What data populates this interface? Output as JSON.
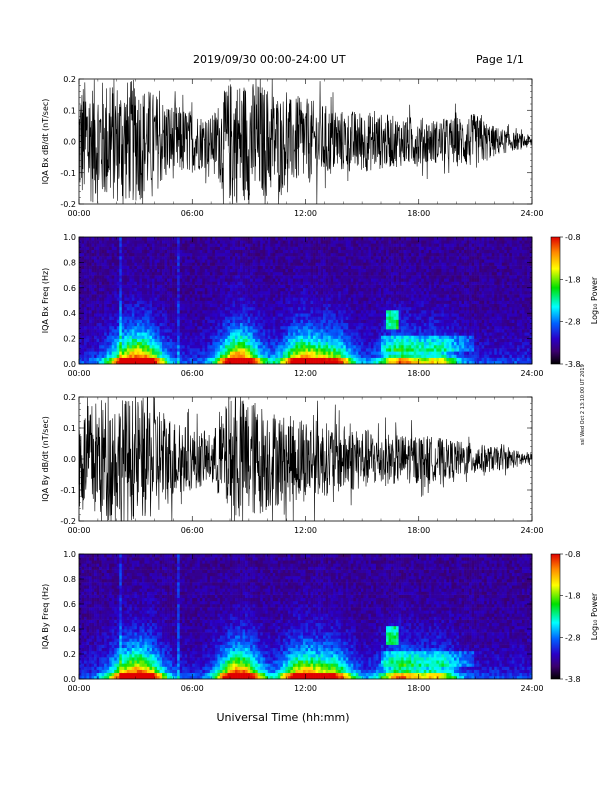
{
  "header": {
    "title": "2019/09/30  00:00-24:00 UT",
    "page": "Page 1/1"
  },
  "footer": {
    "xlabel": "Universal Time (hh:mm)",
    "side_note": "ssl Wed Oct 2 13:10:00 UT 2019"
  },
  "colorbar": {
    "label": "Log₁₀ Power",
    "ticks": [
      -0.8,
      -1.8,
      -2.8,
      -3.8
    ],
    "tick_labels": [
      "-0.8",
      "-1.8",
      "-2.8",
      "-3.8"
    ],
    "colors": [
      "#e00000",
      "#ff8800",
      "#ffff00",
      "#00e000",
      "#00ffff",
      "#0060ff",
      "#2a00c8",
      "#3a006e",
      "#000000"
    ]
  },
  "chart_data": [
    {
      "type": "line",
      "panel": "iqa-bx-timeseries",
      "ylabel": "IQA Bx dB/dt (nT/sec)",
      "ylim": [
        -0.2,
        0.2
      ],
      "yticks": [
        -0.2,
        -0.1,
        0.0,
        0.1,
        0.2
      ],
      "ytick_labels": [
        "-0.2",
        "-0.1",
        "0.0",
        "0.1",
        "0.2"
      ],
      "xlim": [
        0,
        24
      ],
      "xticks": [
        0,
        6,
        12,
        18,
        24
      ],
      "xtick_labels": [
        "00:00",
        "06:00",
        "12:00",
        "18:00",
        "24:00"
      ],
      "envelope_hours": [
        0,
        1,
        2,
        3,
        4,
        5,
        6,
        7,
        8,
        9,
        10,
        11,
        12,
        13,
        14,
        15,
        16,
        17,
        18,
        19,
        20,
        21,
        22,
        23,
        24
      ],
      "envelope_amplitude": [
        0.2,
        0.2,
        0.2,
        0.2,
        0.16,
        0.12,
        0.1,
        0.08,
        0.2,
        0.2,
        0.18,
        0.14,
        0.14,
        0.12,
        0.1,
        0.1,
        0.09,
        0.08,
        0.08,
        0.07,
        0.08,
        0.09,
        0.05,
        0.03,
        0.02
      ]
    },
    {
      "type": "heatmap",
      "panel": "iqa-bx-spectrogram",
      "ylabel": "IQA Bx Freq (Hz)",
      "ylim": [
        0,
        1.0
      ],
      "yticks": [
        0.0,
        0.2,
        0.4,
        0.6,
        0.8,
        1.0
      ],
      "ytick_labels": [
        "0.0",
        "0.2",
        "0.4",
        "0.6",
        "0.8",
        "1.0"
      ],
      "xlim": [
        0,
        24
      ],
      "xticks": [
        0,
        6,
        12,
        18,
        24
      ],
      "xtick_labels": [
        "00:00",
        "06:00",
        "12:00",
        "18:00",
        "24:00"
      ],
      "zlim": [
        -3.8,
        -0.8
      ]
    },
    {
      "type": "line",
      "panel": "iqa-by-timeseries",
      "ylabel": "IQA By dB/dt (nT/sec)",
      "ylim": [
        -0.2,
        0.2
      ],
      "yticks": [
        -0.2,
        -0.1,
        0.0,
        0.1,
        0.2
      ],
      "ytick_labels": [
        "-0.2",
        "-0.1",
        "0.0",
        "0.1",
        "0.2"
      ],
      "xlim": [
        0,
        24
      ],
      "xticks": [
        0,
        6,
        12,
        18,
        24
      ],
      "xtick_labels": [
        "00:00",
        "06:00",
        "12:00",
        "18:00",
        "24:00"
      ],
      "envelope_hours": [
        0,
        1,
        2,
        3,
        4,
        5,
        6,
        7,
        8,
        9,
        10,
        11,
        12,
        13,
        14,
        15,
        16,
        17,
        18,
        19,
        20,
        21,
        22,
        23,
        24
      ],
      "envelope_amplitude": [
        0.15,
        0.2,
        0.2,
        0.2,
        0.2,
        0.13,
        0.1,
        0.08,
        0.2,
        0.2,
        0.17,
        0.14,
        0.14,
        0.12,
        0.11,
        0.1,
        0.09,
        0.08,
        0.08,
        0.07,
        0.06,
        0.05,
        0.04,
        0.03,
        0.02
      ]
    },
    {
      "type": "heatmap",
      "panel": "iqa-by-spectrogram",
      "ylabel": "IQA By Freq (Hz)",
      "ylim": [
        0,
        1.0
      ],
      "yticks": [
        0.0,
        0.2,
        0.4,
        0.6,
        0.8,
        1.0
      ],
      "ytick_labels": [
        "0.0",
        "0.2",
        "0.4",
        "0.6",
        "0.8",
        "1.0"
      ],
      "xlim": [
        0,
        24
      ],
      "xticks": [
        0,
        6,
        12,
        18,
        24
      ],
      "xtick_labels": [
        "00:00",
        "06:00",
        "12:00",
        "18:00",
        "24:00"
      ],
      "zlim": [
        -3.8,
        -0.8
      ]
    }
  ]
}
